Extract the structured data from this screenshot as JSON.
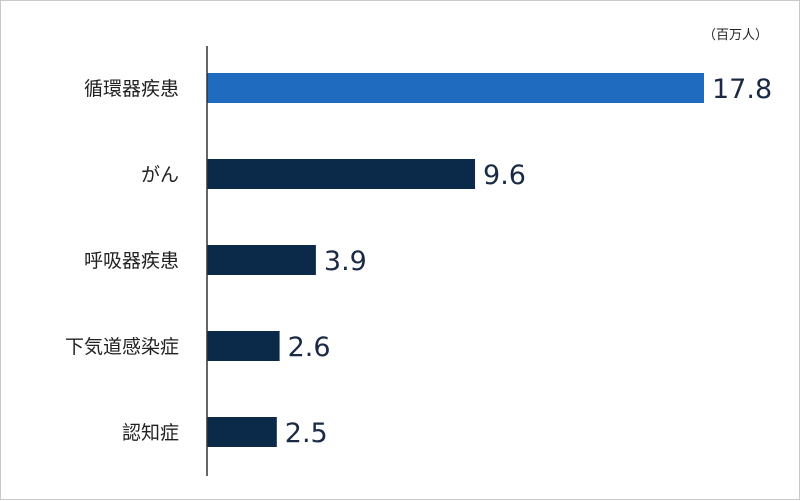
{
  "chart_data": {
    "type": "bar",
    "orientation": "horizontal",
    "unit": "（百万人）",
    "categories": [
      "循環器疾患",
      "がん",
      "呼吸器疾患",
      "下気道感染症",
      "認知症"
    ],
    "values": [
      17.8,
      9.6,
      3.9,
      2.6,
      2.5
    ],
    "value_labels": [
      "17.8",
      "9.6",
      "3.9",
      "2.6",
      "2.5"
    ],
    "xlim": [
      0,
      17.8
    ],
    "grid": false,
    "legend": "none",
    "highlight_index": 0,
    "colors": {
      "highlight": "#1f6bc0",
      "default": "#0b2a4a",
      "axis": "#333333",
      "value_text": "#1b2a44"
    }
  }
}
